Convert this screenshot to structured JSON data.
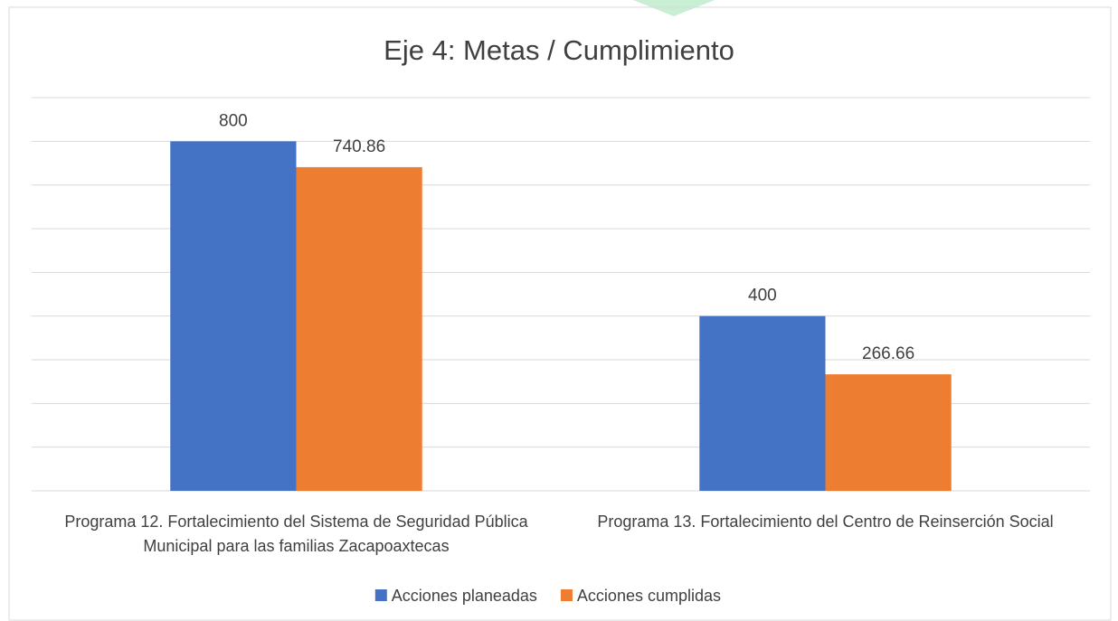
{
  "chart_data": {
    "type": "bar",
    "title": "Eje 4: Metas / Cumplimiento",
    "categories": [
      "Programa 12. Fortalecimiento del Sistema de Seguridad Pública Municipal para las familias Zacapoaxtecas",
      "Programa 13. Fortalecimiento del Centro de Reinserción Social"
    ],
    "series": [
      {
        "name": "Acciones planeadas",
        "color": "#4472c4",
        "values": [
          800,
          400
        ]
      },
      {
        "name": "Acciones cumplidas",
        "color": "#ed7d31",
        "values": [
          740.86,
          266.66
        ]
      }
    ],
    "ylim": [
      0,
      900
    ],
    "yticks": [
      0,
      100,
      200,
      300,
      400,
      500,
      600,
      700,
      800,
      900
    ],
    "grid": true,
    "legend": "bottom"
  }
}
